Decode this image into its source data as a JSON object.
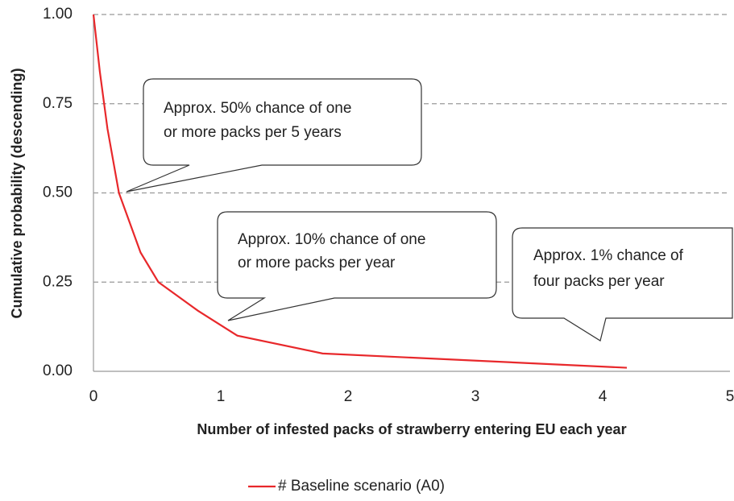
{
  "chart_data": {
    "type": "line",
    "xlabel": "Number of infested packs of strawberry entering EU each year",
    "ylabel": "Cumulative probability (descending)",
    "xlim": [
      0,
      5
    ],
    "xticks": [
      0,
      1,
      2,
      3,
      4,
      5
    ],
    "ylim": [
      0,
      1
    ],
    "yticks": [
      {
        "value": 0,
        "label": "0.00"
      },
      {
        "value": 0.25,
        "label": "0.25"
      },
      {
        "value": 0.5,
        "label": "0.50"
      },
      {
        "value": 0.75,
        "label": "0.75"
      },
      {
        "value": 1,
        "label": "1.00"
      }
    ],
    "grid": true,
    "series": [
      {
        "name": "# Baseline scenario (A0)",
        "color": "#e8282b",
        "x": [
          0,
          0.05,
          0.11,
          0.2,
          0.37,
          0.51,
          0.82,
          1.13,
          1.8,
          4.19
        ],
        "values": [
          1.0,
          0.84,
          0.68,
          0.5,
          0.333,
          0.25,
          0.17,
          0.1,
          0.05,
          0.01
        ]
      }
    ],
    "legend": "bottom",
    "annotations": [
      {
        "text": [
          "Approx. 50% chance of one",
          "or more packs per 5 years"
        ]
      },
      {
        "text": [
          "Approx. 10% chance of one",
          "or more packs per year"
        ]
      },
      {
        "text": [
          "Approx. 1% chance of",
          "four packs per year"
        ]
      }
    ]
  }
}
